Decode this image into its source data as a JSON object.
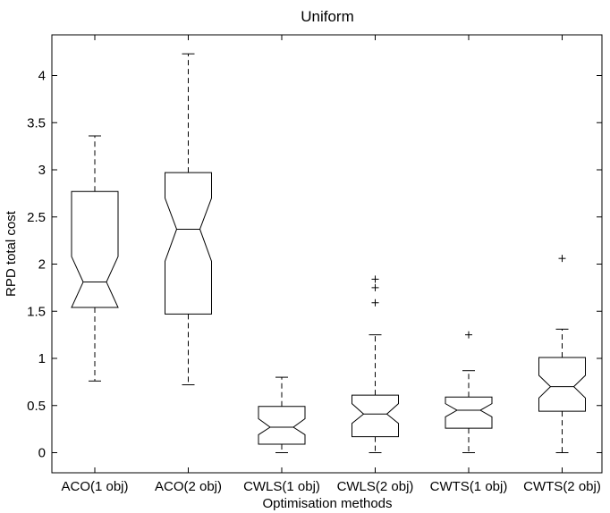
{
  "chart_data": {
    "type": "boxplot",
    "title": "Uniform",
    "xlabel": "Optimisation methods",
    "ylabel": "RPD total cost",
    "ylim": [
      -0.2,
      4.5
    ],
    "yticks": [
      "0",
      "0.5",
      "1",
      "1.5",
      "2",
      "2.5",
      "3",
      "3.5",
      "4"
    ],
    "notched": true,
    "grid": false,
    "categories": [
      "ACO(1 obj)",
      "ACO(2 obj)",
      "CWLS(1 obj)",
      "CWLS(2 obj)",
      "CWTS(1 obj)",
      "CWTS(2 obj)"
    ],
    "boxes": [
      {
        "whisker_low": 0.76,
        "q1": 1.54,
        "median": 1.81,
        "q3": 2.77,
        "whisker_high": 3.36,
        "notch_low": 1.54,
        "notch_high": 2.08,
        "outliers": []
      },
      {
        "whisker_low": 0.72,
        "q1": 1.47,
        "median": 2.37,
        "q3": 2.97,
        "whisker_high": 4.23,
        "notch_low": 2.03,
        "notch_high": 2.7,
        "outliers": []
      },
      {
        "whisker_low": 0.0,
        "q1": 0.09,
        "median": 0.27,
        "q3": 0.49,
        "whisker_high": 0.8,
        "notch_low": 0.19,
        "notch_high": 0.36,
        "outliers": []
      },
      {
        "whisker_low": 0.0,
        "q1": 0.17,
        "median": 0.41,
        "q3": 0.61,
        "whisker_high": 1.25,
        "notch_low": 0.31,
        "notch_high": 0.52,
        "outliers": [
          1.59,
          1.75,
          1.84
        ]
      },
      {
        "whisker_low": 0.0,
        "q1": 0.26,
        "median": 0.45,
        "q3": 0.59,
        "whisker_high": 0.87,
        "notch_low": 0.38,
        "notch_high": 0.52,
        "outliers": [
          1.25
        ]
      },
      {
        "whisker_low": 0.0,
        "q1": 0.44,
        "median": 0.7,
        "q3": 1.01,
        "whisker_high": 1.31,
        "notch_low": 0.58,
        "notch_high": 0.82,
        "outliers": [
          2.06
        ]
      }
    ]
  }
}
